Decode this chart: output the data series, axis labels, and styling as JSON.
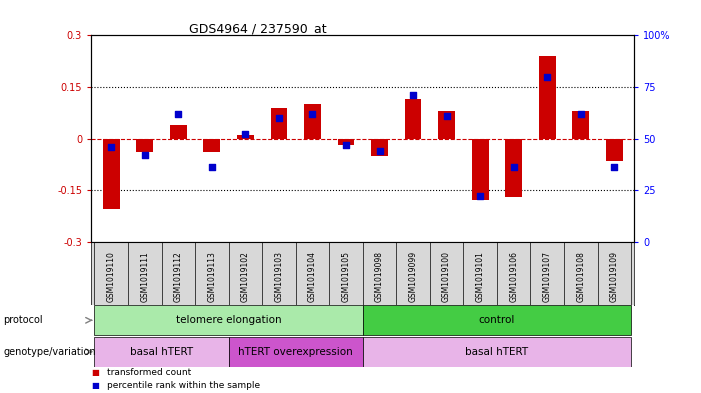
{
  "title": "GDS4964 / 237590_at",
  "samples": [
    "GSM1019110",
    "GSM1019111",
    "GSM1019112",
    "GSM1019113",
    "GSM1019102",
    "GSM1019103",
    "GSM1019104",
    "GSM1019105",
    "GSM1019098",
    "GSM1019099",
    "GSM1019100",
    "GSM1019101",
    "GSM1019106",
    "GSM1019107",
    "GSM1019108",
    "GSM1019109"
  ],
  "transformed_counts": [
    -0.205,
    -0.04,
    0.04,
    -0.04,
    0.01,
    0.09,
    0.1,
    -0.02,
    -0.05,
    0.115,
    0.08,
    -0.18,
    -0.17,
    0.24,
    0.08,
    -0.065
  ],
  "percentile_ranks": [
    46,
    42,
    62,
    36,
    52,
    60,
    62,
    47,
    44,
    71,
    61,
    22,
    36,
    80,
    62,
    36
  ],
  "ylim_left": [
    -0.3,
    0.3
  ],
  "ylim_right": [
    0,
    100
  ],
  "yticks_left": [
    -0.3,
    -0.15,
    0,
    0.15,
    0.3
  ],
  "yticks_right": [
    0,
    25,
    50,
    75,
    100
  ],
  "ytick_labels_right": [
    "0",
    "25",
    "50",
    "75",
    "100%"
  ],
  "dotted_lines": [
    0.15,
    -0.15
  ],
  "bar_color": "#cc0000",
  "dot_color": "#0000cc",
  "protocol_groups": [
    {
      "label": "telomere elongation",
      "start": 0,
      "end": 8,
      "color": "#aaeaaa"
    },
    {
      "label": "control",
      "start": 8,
      "end": 16,
      "color": "#44cc44"
    }
  ],
  "genotype_groups": [
    {
      "label": "basal hTERT",
      "start": 0,
      "end": 4,
      "color": "#e8b4e8"
    },
    {
      "label": "hTERT overexpression",
      "start": 4,
      "end": 8,
      "color": "#cc55cc"
    },
    {
      "label": "basal hTERT",
      "start": 8,
      "end": 16,
      "color": "#e8b4e8"
    }
  ],
  "protocol_label": "protocol",
  "genotype_label": "genotype/variation",
  "legend_bar": "transformed count",
  "legend_dot": "percentile rank within the sample",
  "bar_width": 0.5,
  "xlabels_bg": "#d8d8d8"
}
